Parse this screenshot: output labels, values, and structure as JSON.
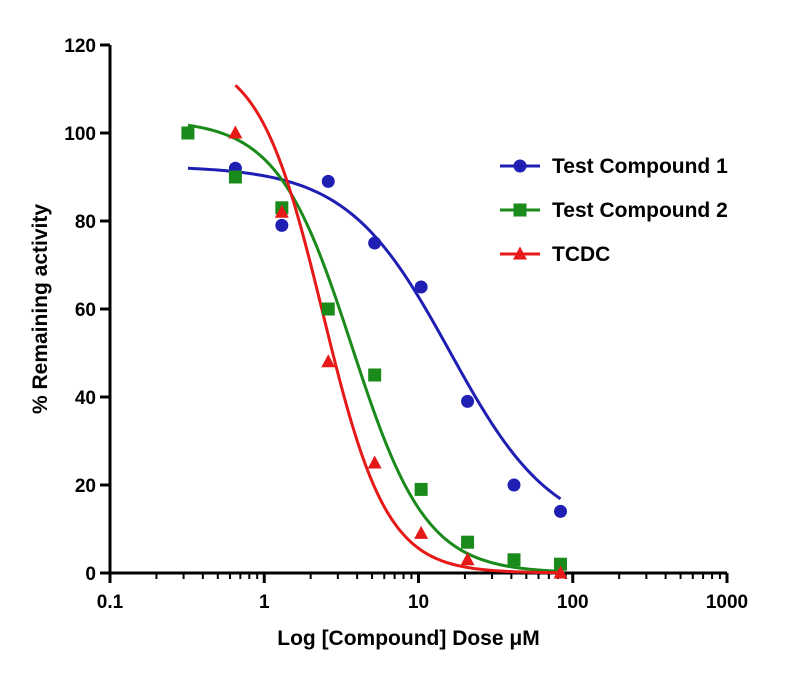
{
  "chart_data": {
    "type": "scatter",
    "xlabel": "Log [Compound] Dose μM",
    "ylabel": "% Remaining activity",
    "xscale": "log",
    "xlim": [
      0.1,
      1000
    ],
    "ylim": [
      0,
      120
    ],
    "xticks": [
      "0.1",
      "1",
      "10",
      "100",
      "1000"
    ],
    "yticks": [
      "0",
      "20",
      "40",
      "60",
      "80",
      "100",
      "120"
    ],
    "grid": false,
    "legend_position": "top-right",
    "series": [
      {
        "name": "Test Compound 1",
        "color": "#1f1fb4",
        "marker": "circle",
        "points": [
          {
            "x": 0.32,
            "y": 100
          },
          {
            "x": 0.65,
            "y": 92
          },
          {
            "x": 1.3,
            "y": 79
          },
          {
            "x": 2.6,
            "y": 89
          },
          {
            "x": 5.2,
            "y": 75
          },
          {
            "x": 10.4,
            "y": 65
          },
          {
            "x": 20.8,
            "y": 39
          },
          {
            "x": 41.6,
            "y": 20
          },
          {
            "x": 83.3,
            "y": 14
          }
        ],
        "fit": {
          "top": 92.5,
          "bottom": 8,
          "ec50": 16,
          "hill": 1.3
        }
      },
      {
        "name": "Test Compound 2",
        "color": "#1a8a1a",
        "marker": "square",
        "points": [
          {
            "x": 0.32,
            "y": 100
          },
          {
            "x": 0.65,
            "y": 90
          },
          {
            "x": 1.3,
            "y": 83
          },
          {
            "x": 2.6,
            "y": 60
          },
          {
            "x": 5.2,
            "y": 45
          },
          {
            "x": 10.4,
            "y": 19
          },
          {
            "x": 20.8,
            "y": 7
          },
          {
            "x": 41.6,
            "y": 3
          },
          {
            "x": 83.3,
            "y": 2
          }
        ],
        "fit": {
          "top": 103,
          "bottom": 0,
          "ec50": 3.7,
          "hill": 1.8
        }
      },
      {
        "name": "TCDC",
        "color": "#e61919",
        "marker": "triangle",
        "points": [
          {
            "x": 0.65,
            "y": 100
          },
          {
            "x": 1.3,
            "y": 82
          },
          {
            "x": 2.6,
            "y": 48
          },
          {
            "x": 5.2,
            "y": 25
          },
          {
            "x": 10.4,
            "y": 9
          },
          {
            "x": 20.8,
            "y": 3
          },
          {
            "x": 83.3,
            "y": 0
          }
        ],
        "fit": {
          "top": 118,
          "bottom": 0,
          "ec50": 2.4,
          "hill": 2.1
        }
      }
    ]
  }
}
